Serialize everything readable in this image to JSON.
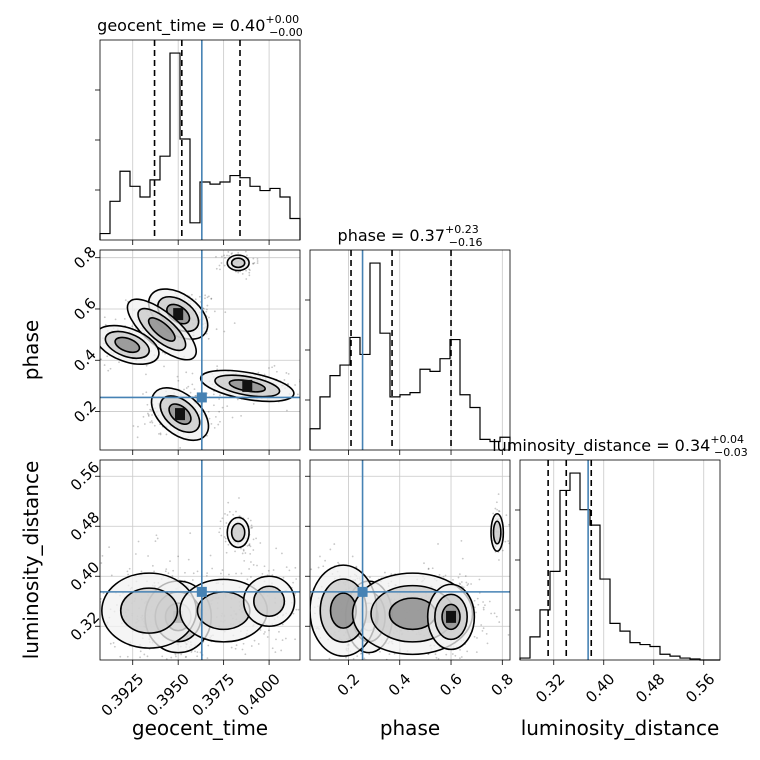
{
  "chart_data": {
    "type": "corner",
    "parameters": [
      "geocent_time",
      "phase",
      "luminosity_distance"
    ],
    "truths": {
      "geocent_time": 0.3963,
      "phase": 0.255,
      "luminosity_distance": 0.375
    },
    "truth_color": "#4682b4",
    "titles": [
      {
        "param": "geocent_time",
        "text": "geocent_time = 0.40",
        "sup": "+0.00",
        "sub": "−0.00"
      },
      {
        "param": "phase",
        "text": "phase = 0.37",
        "sup": "+0.23",
        "sub": "−0.16"
      },
      {
        "param": "luminosity_distance",
        "text": "luminosity_distance = 0.34",
        "sup": "+0.04",
        "sub": "−0.03"
      }
    ],
    "axis_labels": {
      "x": [
        "geocent_time",
        "phase",
        "luminosity_distance"
      ],
      "y": [
        "phase",
        "luminosity_distance"
      ]
    },
    "ticks": {
      "geocent_time": {
        "values": [
          0.3925,
          0.395,
          0.3975,
          0.4
        ],
        "labels": [
          "0.3925",
          "0.3950",
          "0.3975",
          "0.4000"
        ]
      },
      "phase": {
        "values": [
          0.2,
          0.4,
          0.6,
          0.8
        ],
        "labels": [
          "0.2",
          "0.4",
          "0.6",
          "0.8"
        ]
      },
      "luminosity_distance": {
        "values": [
          0.32,
          0.4,
          0.48,
          0.56
        ],
        "labels": [
          "0.32",
          "0.40",
          "0.48",
          "0.56"
        ]
      }
    },
    "ranges": {
      "geocent_time": [
        0.3907,
        0.4017
      ],
      "phase": [
        0.05,
        0.83
      ],
      "luminosity_distance": [
        0.266,
        0.586
      ]
    },
    "histograms": {
      "geocent_time": {
        "edges": [
          0.3907,
          0.39125,
          0.3918,
          0.39235,
          0.3929,
          0.39345,
          0.394,
          0.39455,
          0.3951,
          0.39565,
          0.3962,
          0.39675,
          0.3973,
          0.39785,
          0.3984,
          0.39895,
          0.3995,
          0.40005,
          0.4006,
          0.40115,
          0.4017
        ],
        "counts": [
          0.03,
          0.18,
          0.32,
          0.25,
          0.2,
          0.28,
          0.39,
          0.87,
          0.47,
          0.08,
          0.27,
          0.26,
          0.27,
          0.3,
          0.29,
          0.25,
          0.23,
          0.24,
          0.2,
          0.1
        ],
        "quantiles": [
          0.3937,
          0.3952,
          0.3984
        ]
      },
      "phase": {
        "edges": [
          0.05,
          0.089,
          0.128,
          0.167,
          0.206,
          0.245,
          0.284,
          0.323,
          0.362,
          0.401,
          0.44,
          0.479,
          0.518,
          0.557,
          0.596,
          0.635,
          0.674,
          0.713,
          0.752,
          0.791,
          0.83
        ],
        "counts": [
          0.1,
          0.25,
          0.35,
          0.4,
          0.53,
          0.45,
          0.88,
          0.55,
          0.25,
          0.26,
          0.27,
          0.38,
          0.37,
          0.43,
          0.52,
          0.26,
          0.2,
          0.05,
          0.04,
          0.06
        ],
        "quantiles": [
          0.21,
          0.37,
          0.6
        ]
      },
      "luminosity_distance": {
        "edges": [
          0.266,
          0.282,
          0.298,
          0.314,
          0.33,
          0.346,
          0.362,
          0.378,
          0.394,
          0.41,
          0.426,
          0.442,
          0.458,
          0.474,
          0.49,
          0.506,
          0.522,
          0.538,
          0.554,
          0.57,
          0.586
        ],
        "counts": [
          0.01,
          0.12,
          0.26,
          0.46,
          0.88,
          0.97,
          0.78,
          0.7,
          0.42,
          0.19,
          0.15,
          0.09,
          0.08,
          0.07,
          0.03,
          0.02,
          0.01,
          0.005,
          0.0,
          0.0
        ],
        "quantiles": [
          0.311,
          0.34,
          0.38
        ]
      }
    },
    "density_blobs": {
      "phase_vs_geocent_time": [
        {
          "x": 0.395,
          "y": 0.58,
          "sx": 0.0007,
          "sy": 0.03,
          "rot": -35,
          "w": 1.0
        },
        {
          "x": 0.3941,
          "y": 0.52,
          "sx": 0.0009,
          "sy": 0.025,
          "rot": -40,
          "w": 0.6
        },
        {
          "x": 0.3922,
          "y": 0.46,
          "sx": 0.0007,
          "sy": 0.025,
          "rot": -20,
          "w": 0.6
        },
        {
          "x": 0.3951,
          "y": 0.19,
          "sx": 0.0007,
          "sy": 0.03,
          "rot": -40,
          "w": 0.8
        },
        {
          "x": 0.3988,
          "y": 0.3,
          "sx": 0.001,
          "sy": 0.02,
          "rot": -10,
          "w": 0.9
        },
        {
          "x": 0.3983,
          "y": 0.78,
          "sx": 0.0003,
          "sy": 0.015,
          "rot": 0,
          "w": 0.5
        }
      ],
      "lumdist_vs_geocent_time": [
        {
          "x": 0.395,
          "y": 0.335,
          "sx": 0.0007,
          "sy": 0.022,
          "rot": 0,
          "w": 1.0
        },
        {
          "x": 0.3934,
          "y": 0.345,
          "sx": 0.0013,
          "sy": 0.03,
          "rot": 0,
          "w": 0.5
        },
        {
          "x": 0.3975,
          "y": 0.345,
          "sx": 0.0012,
          "sy": 0.025,
          "rot": 0,
          "w": 0.45
        },
        {
          "x": 0.4,
          "y": 0.36,
          "sx": 0.0007,
          "sy": 0.02,
          "rot": 0,
          "w": 0.35
        },
        {
          "x": 0.3983,
          "y": 0.47,
          "sx": 0.0003,
          "sy": 0.012,
          "rot": 0,
          "w": 0.25
        }
      ],
      "lumdist_vs_phase": [
        {
          "x": 0.28,
          "y": 0.335,
          "sx": 0.035,
          "sy": 0.022,
          "rot": 0,
          "w": 1.0
        },
        {
          "x": 0.18,
          "y": 0.345,
          "sx": 0.05,
          "sy": 0.028,
          "rot": 0,
          "w": 0.6
        },
        {
          "x": 0.45,
          "y": 0.34,
          "sx": 0.09,
          "sy": 0.025,
          "rot": 0,
          "w": 0.7
        },
        {
          "x": 0.6,
          "y": 0.335,
          "sx": 0.035,
          "sy": 0.02,
          "rot": 0,
          "w": 0.9
        },
        {
          "x": 0.78,
          "y": 0.47,
          "sx": 0.012,
          "sy": 0.015,
          "rot": 0,
          "w": 0.25
        }
      ]
    }
  }
}
